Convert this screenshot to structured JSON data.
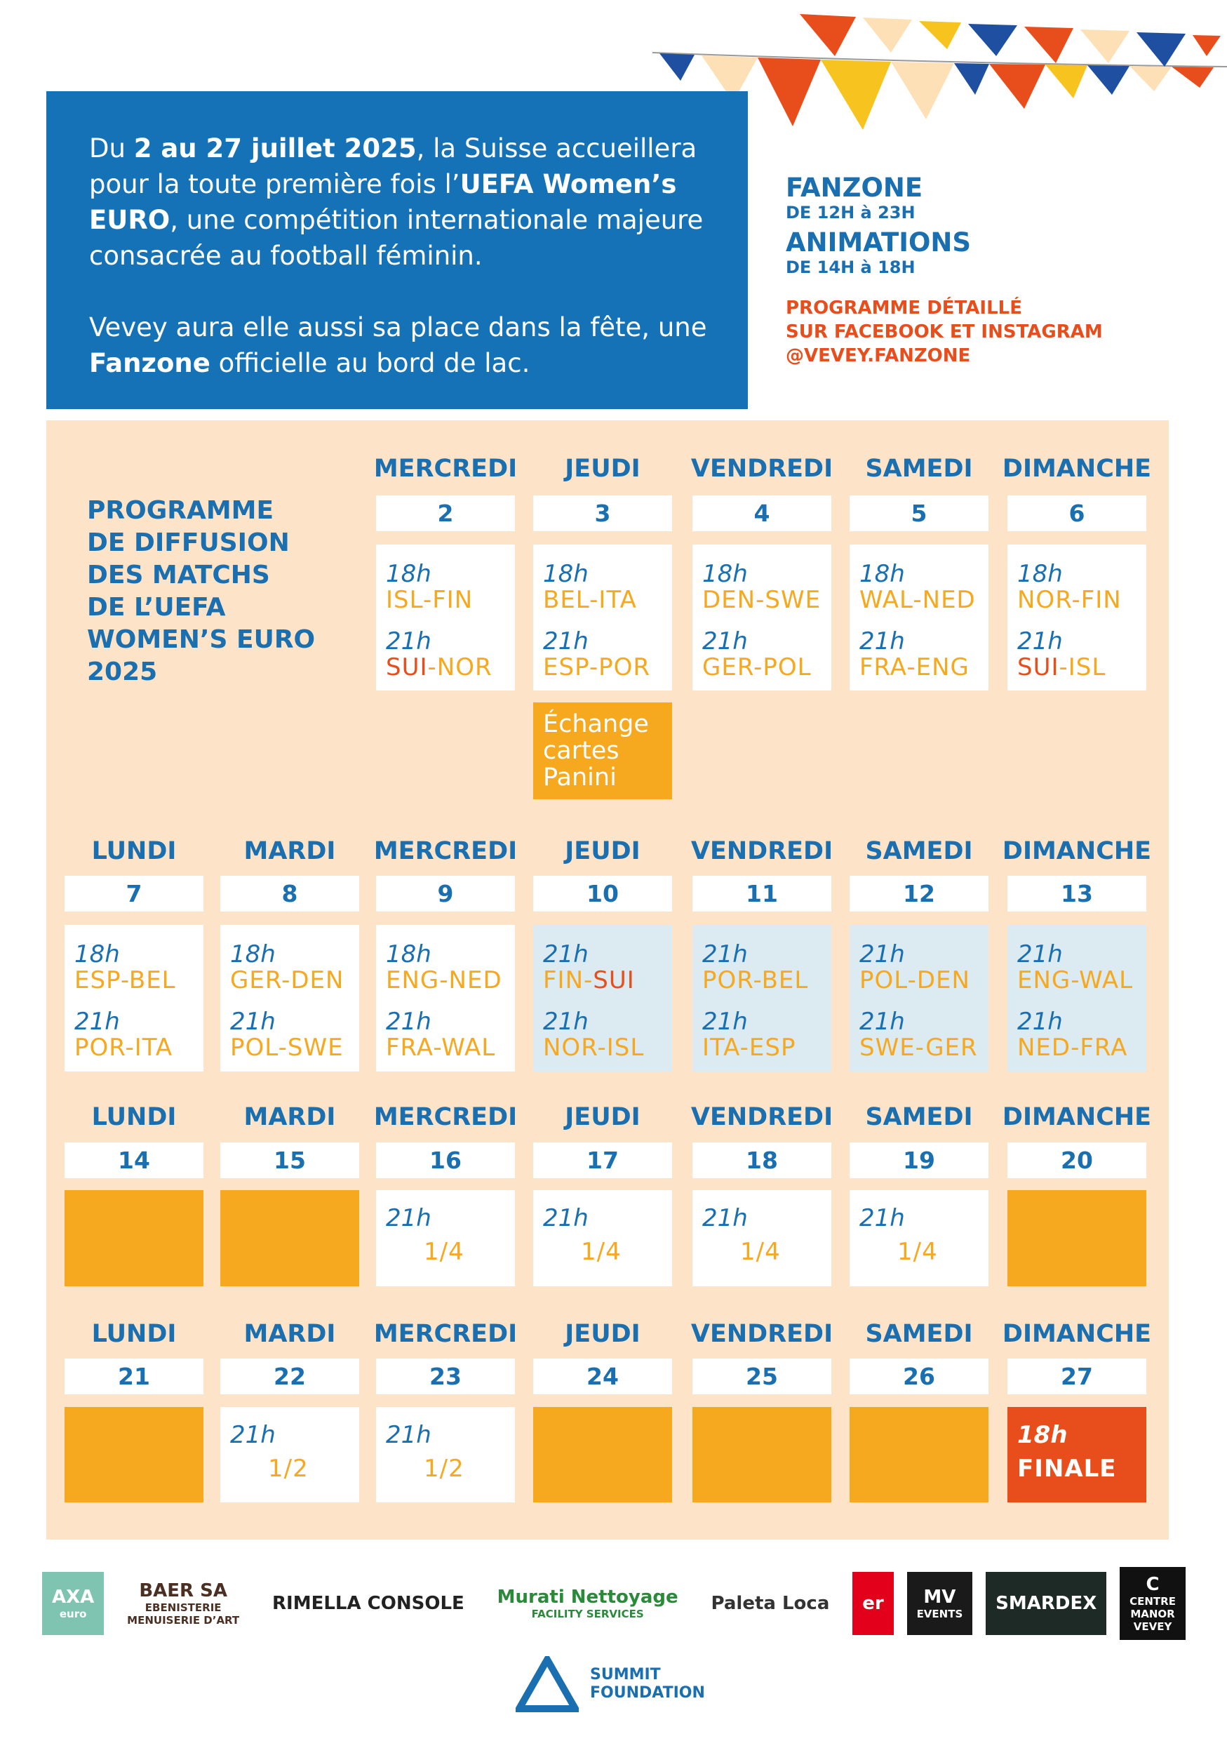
{
  "intro": {
    "paragraphs": [
      [
        {
          "text": "Du ",
          "bold": false
        },
        {
          "text": "2 au 27 juillet 2025",
          "bold": true
        },
        {
          "text": ", la Suisse accueillera pour la toute première fois l’",
          "bold": false
        },
        {
          "text": "UEFA Women’s EURO",
          "bold": true
        },
        {
          "text": ", une compétition internationale majeure consacrée au football féminin.",
          "bold": false
        }
      ],
      [
        {
          "text": "Vevey aura elle aussi sa place dans la fête, une ",
          "bold": false
        },
        {
          "text": "Fanzone",
          "bold": true
        },
        {
          "text": " officielle au bord de lac.",
          "bold": false
        }
      ]
    ]
  },
  "info": {
    "fanzone": "FANZONE",
    "fanzone_hours": "DE 12H à 23H",
    "animations": "ANIMATIONS",
    "animations_hours": "DE 14H à 18H",
    "programme_lines": [
      "PROGRAMME DÉTAILLÉ",
      "SUR FACEBOOK ET INSTAGRAM",
      "@VEVEY.FANZONE"
    ]
  },
  "programme_title": [
    "PROGRAMME",
    "DE DIFFUSION",
    "DES MATCHS",
    "DE L’UEFA",
    "WOMEN’S EURO",
    "2025"
  ],
  "highlight_team": "SUI",
  "weeks": [
    {
      "days": [
        {
          "weekday": "MERCREDI",
          "date": "2",
          "box_color": "#ffffff",
          "slots": [
            {
              "time": "18h",
              "match": "ISL-FIN"
            },
            {
              "time": "21h",
              "match": "SUI-NOR"
            }
          ]
        },
        {
          "weekday": "JEUDI",
          "date": "3",
          "box_color": "#ffffff",
          "slots": [
            {
              "time": "18h",
              "match": "BEL-ITA"
            },
            {
              "time": "21h",
              "match": "ESP-POR"
            }
          ],
          "note": [
            "Échange",
            "cartes",
            "Panini"
          ]
        },
        {
          "weekday": "VENDREDI",
          "date": "4",
          "box_color": "#ffffff",
          "slots": [
            {
              "time": "18h",
              "match": "DEN-SWE"
            },
            {
              "time": "21h",
              "match": "GER-POL"
            }
          ]
        },
        {
          "weekday": "SAMEDI",
          "date": "5",
          "box_color": "#ffffff",
          "slots": [
            {
              "time": "18h",
              "match": "WAL-NED"
            },
            {
              "time": "21h",
              "match": "FRA-ENG"
            }
          ]
        },
        {
          "weekday": "DIMANCHE",
          "date": "6",
          "box_color": "#ffffff",
          "slots": [
            {
              "time": "18h",
              "match": "NOR-FIN"
            },
            {
              "time": "21h",
              "match": "SUI-ISL"
            }
          ]
        }
      ]
    },
    {
      "days": [
        {
          "weekday": "LUNDI",
          "date": "7",
          "box_color": "#ffffff",
          "slots": [
            {
              "time": "18h",
              "match": "ESP-BEL"
            },
            {
              "time": "21h",
              "match": "POR-ITA"
            }
          ]
        },
        {
          "weekday": "MARDI",
          "date": "8",
          "box_color": "#ffffff",
          "slots": [
            {
              "time": "18h",
              "match": "GER-DEN"
            },
            {
              "time": "21h",
              "match": "POL-SWE"
            }
          ]
        },
        {
          "weekday": "MERCREDI",
          "date": "9",
          "box_color": "#ffffff",
          "slots": [
            {
              "time": "18h",
              "match": "ENG-NED"
            },
            {
              "time": "21h",
              "match": "FRA-WAL"
            }
          ]
        },
        {
          "weekday": "JEUDI",
          "date": "10",
          "box_color": "#dceaf2",
          "slots": [
            {
              "time": "21h",
              "match": "FIN-SUI"
            },
            {
              "time": "21h",
              "match": "NOR-ISL"
            }
          ]
        },
        {
          "weekday": "VENDREDI",
          "date": "11",
          "box_color": "#dceaf2",
          "slots": [
            {
              "time": "21h",
              "match": "POR-BEL"
            },
            {
              "time": "21h",
              "match": "ITA-ESP"
            }
          ]
        },
        {
          "weekday": "SAMEDI",
          "date": "12",
          "box_color": "#dceaf2",
          "slots": [
            {
              "time": "21h",
              "match": "POL-DEN"
            },
            {
              "time": "21h",
              "match": "SWE-GER"
            }
          ]
        },
        {
          "weekday": "DIMANCHE",
          "date": "13",
          "box_color": "#dceaf2",
          "slots": [
            {
              "time": "21h",
              "match": "ENG-WAL"
            },
            {
              "time": "21h",
              "match": "NED-FRA"
            }
          ]
        }
      ]
    },
    {
      "days": [
        {
          "weekday": "LUNDI",
          "date": "14",
          "box_color": "#f6a81f",
          "slots": []
        },
        {
          "weekday": "MARDI",
          "date": "15",
          "box_color": "#f6a81f",
          "slots": []
        },
        {
          "weekday": "MERCREDI",
          "date": "16",
          "box_color": "#ffffff",
          "slots": [
            {
              "time": "21h",
              "match": "1/4"
            }
          ]
        },
        {
          "weekday": "JEUDI",
          "date": "17",
          "box_color": "#ffffff",
          "slots": [
            {
              "time": "21h",
              "match": "1/4"
            }
          ]
        },
        {
          "weekday": "VENDREDI",
          "date": "18",
          "box_color": "#ffffff",
          "slots": [
            {
              "time": "21h",
              "match": "1/4"
            }
          ]
        },
        {
          "weekday": "SAMEDI",
          "date": "19",
          "box_color": "#ffffff",
          "slots": [
            {
              "time": "21h",
              "match": "1/4"
            }
          ]
        },
        {
          "weekday": "DIMANCHE",
          "date": "20",
          "box_color": "#f6a81f",
          "slots": []
        }
      ]
    },
    {
      "days": [
        {
          "weekday": "LUNDI",
          "date": "21",
          "box_color": "#f6a81f",
          "slots": []
        },
        {
          "weekday": "MARDI",
          "date": "22",
          "box_color": "#ffffff",
          "slots": [
            {
              "time": "21h",
              "match": "1/2"
            }
          ]
        },
        {
          "weekday": "MERCREDI",
          "date": "23",
          "box_color": "#ffffff",
          "slots": [
            {
              "time": "21h",
              "match": "1/2"
            }
          ]
        },
        {
          "weekday": "JEUDI",
          "date": "24",
          "box_color": "#f6a81f",
          "slots": []
        },
        {
          "weekday": "VENDREDI",
          "date": "25",
          "box_color": "#f6a81f",
          "slots": []
        },
        {
          "weekday": "SAMEDI",
          "date": "26",
          "box_color": "#f6a81f",
          "slots": []
        },
        {
          "weekday": "DIMANCHE",
          "date": "27",
          "box_color": "#e84e1b",
          "slots": [
            {
              "time": "18h",
              "match": "FINALE"
            }
          ]
        }
      ]
    }
  ],
  "sponsors": [
    {
      "lines": [
        "AXA",
        "euro"
      ],
      "bg": "#7fc4b0",
      "fg": "#ffffff"
    },
    {
      "lines": [
        "BAER SA",
        "EBENISTERIE",
        "MENUISERIE D’ART"
      ],
      "bg": "#ffffff",
      "fg": "#4a2f22"
    },
    {
      "lines": [
        "RIMELLA CONSOLE"
      ],
      "bg": "#ffffff",
      "fg": "#222222"
    },
    {
      "lines": [
        "Murati Nettoyage",
        "FACILITY SERVICES"
      ],
      "bg": "#ffffff",
      "fg": "#2a8a3a"
    },
    {
      "lines": [
        "Paleta Loca"
      ],
      "bg": "#ffffff",
      "fg": "#333333"
    },
    {
      "lines": [
        "er"
      ],
      "bg": "#e3001b",
      "fg": "#ffffff"
    },
    {
      "lines": [
        "MV",
        "EVENTS"
      ],
      "bg": "#1a1a1a",
      "fg": "#ffffff"
    },
    {
      "lines": [
        "SMARDEX"
      ],
      "bg": "#1d2a26",
      "fg": "#ffffff"
    },
    {
      "lines": [
        "C",
        "CENTRE",
        "MANOR",
        "VEVEY"
      ],
      "bg": "#111111",
      "fg": "#ffffff"
    }
  ],
  "footer_sponsor": [
    "SUMMIT",
    "FOUNDATION"
  ]
}
